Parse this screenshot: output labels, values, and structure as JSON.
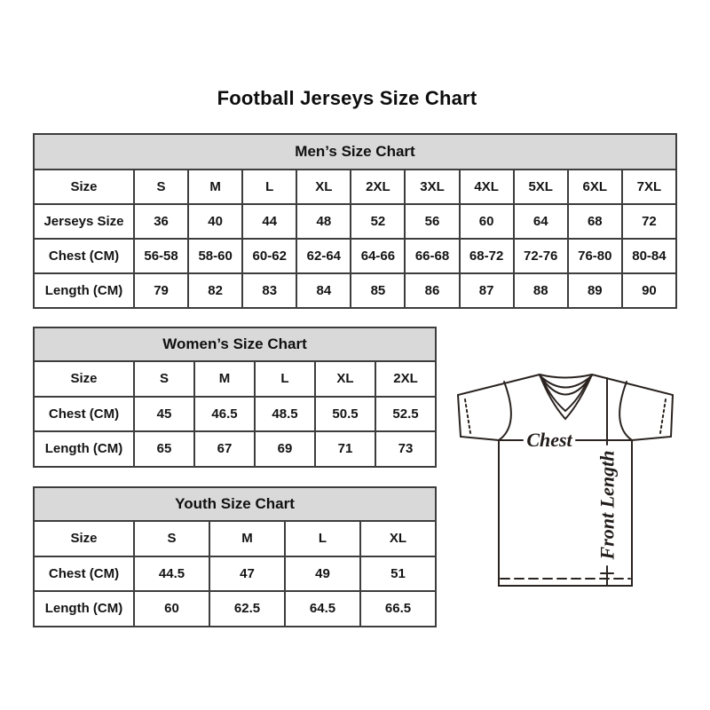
{
  "page": {
    "title": "Football Jerseys Size Chart",
    "background": "#ffffff"
  },
  "colors": {
    "table_border": "#3d3d3d",
    "table_header_bg": "#d9d9d9",
    "text": "#141414",
    "diagram_line": "#2a2320"
  },
  "chart_data": [
    {
      "type": "table",
      "id": "mens",
      "title": "Men’s Size Chart",
      "rows": [
        [
          "Size",
          "S",
          "M",
          "L",
          "XL",
          "2XL",
          "3XL",
          "4XL",
          "5XL",
          "6XL",
          "7XL"
        ],
        [
          "Jerseys Size",
          "36",
          "40",
          "44",
          "48",
          "52",
          "56",
          "60",
          "64",
          "68",
          "72"
        ],
        [
          "Chest (CM)",
          "56-58",
          "58-60",
          "60-62",
          "62-64",
          "64-66",
          "66-68",
          "68-72",
          "72-76",
          "76-80",
          "80-84"
        ],
        [
          "Length (CM)",
          "79",
          "82",
          "83",
          "84",
          "85",
          "86",
          "87",
          "88",
          "89",
          "90"
        ]
      ]
    },
    {
      "type": "table",
      "id": "womens",
      "title": "Women’s Size Chart",
      "rows": [
        [
          "Size",
          "S",
          "M",
          "L",
          "XL",
          "2XL"
        ],
        [
          "Chest (CM)",
          "45",
          "46.5",
          "48.5",
          "50.5",
          "52.5"
        ],
        [
          "Length (CM)",
          "65",
          "67",
          "69",
          "71",
          "73"
        ]
      ]
    },
    {
      "type": "table",
      "id": "youth",
      "title": "Youth Size Chart",
      "rows": [
        [
          "Size",
          "S",
          "M",
          "L",
          "XL"
        ],
        [
          "Chest (CM)",
          "44.5",
          "47",
          "49",
          "51"
        ],
        [
          "Length (CM)",
          "60",
          "62.5",
          "64.5",
          "66.5"
        ]
      ]
    }
  ],
  "diagram": {
    "chest_label": "Chest",
    "front_length_label": "Front Length"
  }
}
